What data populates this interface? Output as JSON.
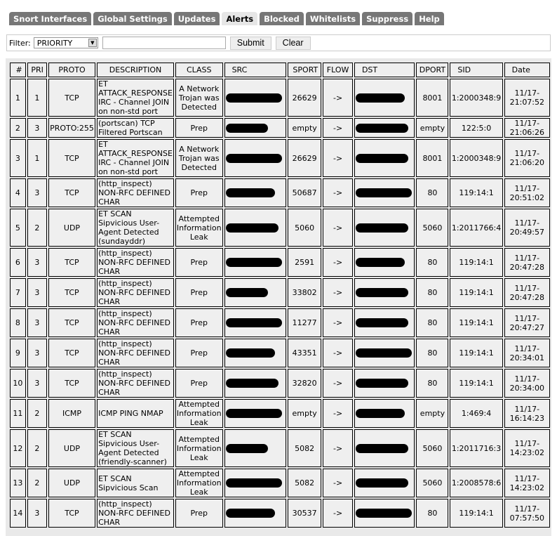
{
  "tabs": [
    {
      "label": "Snort Interfaces",
      "active": false
    },
    {
      "label": "Global Settings",
      "active": false
    },
    {
      "label": "Updates",
      "active": false
    },
    {
      "label": "Alerts",
      "active": true
    },
    {
      "label": "Blocked",
      "active": false
    },
    {
      "label": "Whitelists",
      "active": false
    },
    {
      "label": "Suppress",
      "active": false
    },
    {
      "label": "Help",
      "active": false
    }
  ],
  "filter": {
    "label": "Filter:",
    "selected": "PRIORITY",
    "value": "",
    "submit": "Submit",
    "clear": "Clear"
  },
  "table": {
    "headers": [
      "#",
      "PRI",
      "PROTO",
      "DESCRIPTION",
      "CLASS",
      "SRC",
      "SPORT",
      "FLOW",
      "DST",
      "DPORT",
      "SID",
      "Date"
    ],
    "rows": [
      [
        "1",
        "1",
        "TCP",
        "ET ATTACK_RESPONSE IRC - Channel JOIN on non-std port",
        "A Network Trojan was Detected",
        "",
        "26629",
        "->",
        "",
        "8001",
        "1:2000348:9",
        "11/17-21:07:52"
      ],
      [
        "2",
        "3",
        "PROTO:255",
        "(portscan) TCP Filtered Portscan",
        "Prep",
        "",
        "empty",
        "->",
        "",
        "empty",
        "122:5:0",
        "11/17-21:06:26"
      ],
      [
        "3",
        "1",
        "TCP",
        "ET ATTACK_RESPONSE IRC - Channel JOIN on non-std port",
        "A Network Trojan was Detected",
        "",
        "26629",
        "->",
        "",
        "8001",
        "1:2000348:9",
        "11/17-21:06:20"
      ],
      [
        "4",
        "3",
        "TCP",
        "(http_inspect) NON-RFC DEFINED CHAR",
        "Prep",
        "",
        "50687",
        "->",
        "",
        "80",
        "119:14:1",
        "11/17-20:51:02"
      ],
      [
        "5",
        "2",
        "UDP",
        "ET SCAN Sipvicious User-Agent Detected (sundayddr)",
        "Attempted Information Leak",
        "",
        "5060",
        "->",
        "",
        "5060",
        "1:2011766:4",
        "11/17-20:49:57"
      ],
      [
        "6",
        "3",
        "TCP",
        "(http_inspect) NON-RFC DEFINED CHAR",
        "Prep",
        "",
        "2591",
        "->",
        "",
        "80",
        "119:14:1",
        "11/17-20:47:28"
      ],
      [
        "7",
        "3",
        "TCP",
        "(http_inspect) NON-RFC DEFINED CHAR",
        "Prep",
        "",
        "33802",
        "->",
        "",
        "80",
        "119:14:1",
        "11/17-20:47:28"
      ],
      [
        "8",
        "3",
        "TCP",
        "(http_inspect) NON-RFC DEFINED CHAR",
        "Prep",
        "",
        "11277",
        "->",
        "",
        "80",
        "119:14:1",
        "11/17-20:47:27"
      ],
      [
        "9",
        "3",
        "TCP",
        "(http_inspect) NON-RFC DEFINED CHAR",
        "Prep",
        "",
        "43351",
        "->",
        "",
        "80",
        "119:14:1",
        "11/17-20:34:01"
      ],
      [
        "10",
        "3",
        "TCP",
        "(http_inspect) NON-RFC DEFINED CHAR",
        "Prep",
        "",
        "32820",
        "->",
        "",
        "80",
        "119:14:1",
        "11/17-20:34:00"
      ],
      [
        "11",
        "2",
        "ICMP",
        "ICMP PING NMAP",
        "Attempted Information Leak",
        "",
        "empty",
        "->",
        "",
        "empty",
        "1:469:4",
        "11/17-16:14:23"
      ],
      [
        "12",
        "2",
        "UDP",
        "ET SCAN Sipvicious User-Agent Detected (friendly-scanner)",
        "Attempted Information Leak",
        "",
        "5082",
        "->",
        "",
        "5060",
        "1:2011716:3",
        "11/17-14:23:02"
      ],
      [
        "13",
        "2",
        "UDP",
        "ET SCAN Sipvicious Scan",
        "Attempted Information Leak",
        "",
        "5082",
        "->",
        "",
        "5060",
        "1:2008578:6",
        "11/17-14:23:02"
      ],
      [
        "14",
        "3",
        "TCP",
        "(http_inspect) NON-RFC DEFINED CHAR",
        "Prep",
        "",
        "30537",
        "->",
        "",
        "80",
        "119:14:1",
        "11/17-07:57:50"
      ]
    ]
  }
}
